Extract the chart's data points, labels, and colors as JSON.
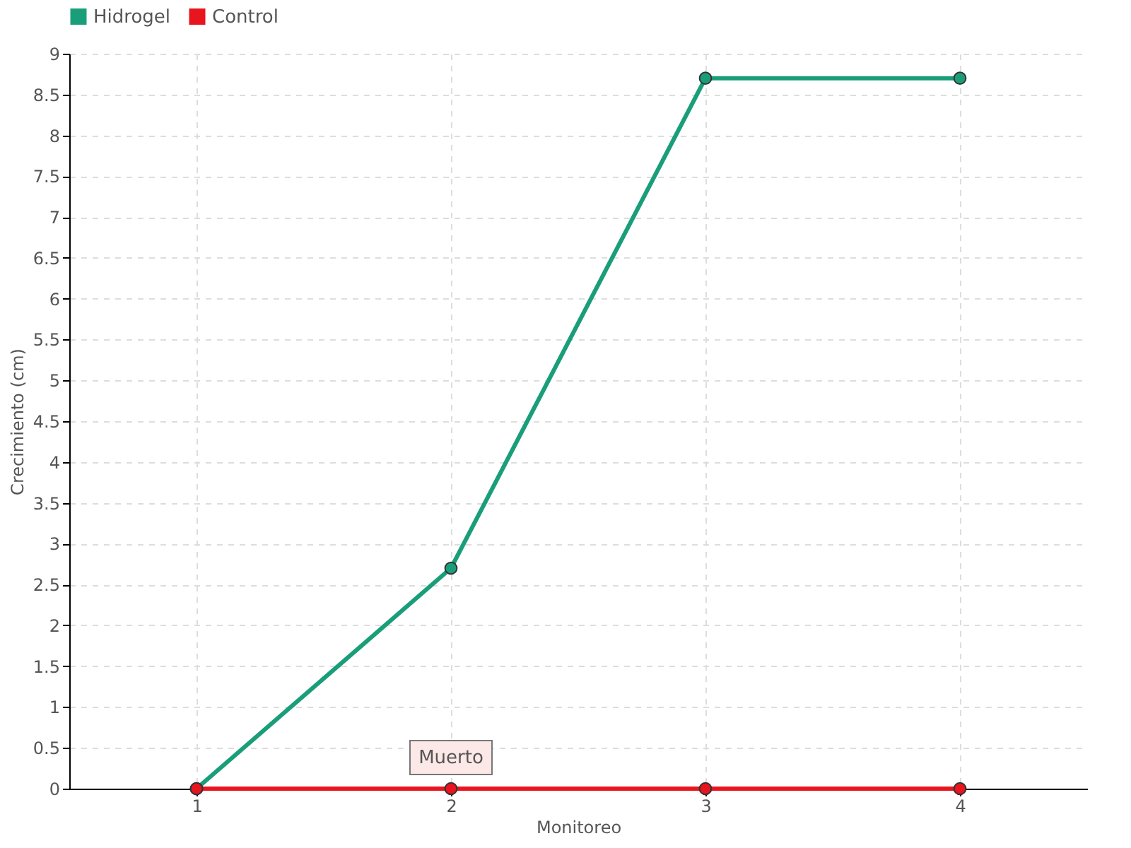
{
  "chart_data": {
    "type": "line",
    "xlabel": "Monitoreo",
    "ylabel": "Crecimiento (cm)",
    "categories": [
      "1",
      "2",
      "3",
      "4"
    ],
    "series": [
      {
        "name": "Hidrogel",
        "color": "#1a9e7a",
        "values": [
          0,
          2.7,
          8.7,
          8.7
        ]
      },
      {
        "name": "Control",
        "color": "#e8141e",
        "values": [
          0,
          0,
          0,
          0
        ]
      }
    ],
    "ylim": [
      0,
      9
    ],
    "yticks": [
      0,
      0.5,
      1,
      1.5,
      2,
      2.5,
      3,
      3.5,
      4,
      4.5,
      5,
      5.5,
      6,
      6.5,
      7,
      7.5,
      8,
      8.5,
      9
    ],
    "annotations": [
      {
        "text": "Muerto",
        "x": "2",
        "y": 0
      }
    ],
    "grid": true,
    "legend": "top left",
    "marker": "circle",
    "line_style": "solid"
  }
}
